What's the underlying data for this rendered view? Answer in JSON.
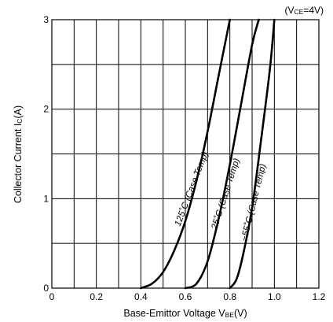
{
  "chart_data": {
    "type": "line",
    "condition": {
      "prefix": "(V",
      "sub": "CE",
      "suffix": "=4V)"
    },
    "xlabel": {
      "main": "Base-Emittor Voltage V",
      "sub": "BE",
      "tail": "(V)"
    },
    "ylabel": {
      "main": "Collector Current I",
      "sub": "C",
      "tail": "(A)"
    },
    "xlim": [
      0,
      1.2
    ],
    "ylim": [
      0,
      3
    ],
    "x_ticks": [
      {
        "value": 0,
        "label": "0"
      },
      {
        "value": 0.2,
        "label": "0.2"
      },
      {
        "value": 0.4,
        "label": "0.4"
      },
      {
        "value": 0.6,
        "label": "0.6"
      },
      {
        "value": 0.8,
        "label": "0.8"
      },
      {
        "value": 1.0,
        "label": "1.0"
      },
      {
        "value": 1.2,
        "label": "1.2"
      }
    ],
    "y_ticks": [
      {
        "value": 0,
        "label": "0"
      },
      {
        "value": 1,
        "label": "1"
      },
      {
        "value": 2,
        "label": "2"
      },
      {
        "value": 3,
        "label": "3"
      }
    ],
    "grid": {
      "x_step": 0.1,
      "y_step": 0.5
    },
    "series": [
      {
        "name": "125˚C (Case Temp)",
        "x": [
          0.4,
          0.45,
          0.5,
          0.55,
          0.6,
          0.65,
          0.7,
          0.75,
          0.8
        ],
        "y": [
          0.0,
          0.05,
          0.18,
          0.42,
          0.75,
          1.2,
          1.75,
          2.38,
          3.0
        ]
      },
      {
        "name": "25˚C (Case Temp)",
        "x": [
          0.6,
          0.65,
          0.7,
          0.75,
          0.8,
          0.85,
          0.9,
          0.93
        ],
        "y": [
          0.0,
          0.05,
          0.3,
          0.78,
          1.38,
          2.05,
          2.72,
          3.0
        ]
      },
      {
        "name": "−55˚C (Case Temp)",
        "x": [
          0.8,
          0.83,
          0.86,
          0.9,
          0.94,
          0.98,
          1.0
        ],
        "y": [
          0.0,
          0.1,
          0.38,
          0.9,
          1.65,
          2.45,
          3.0
        ]
      }
    ]
  }
}
